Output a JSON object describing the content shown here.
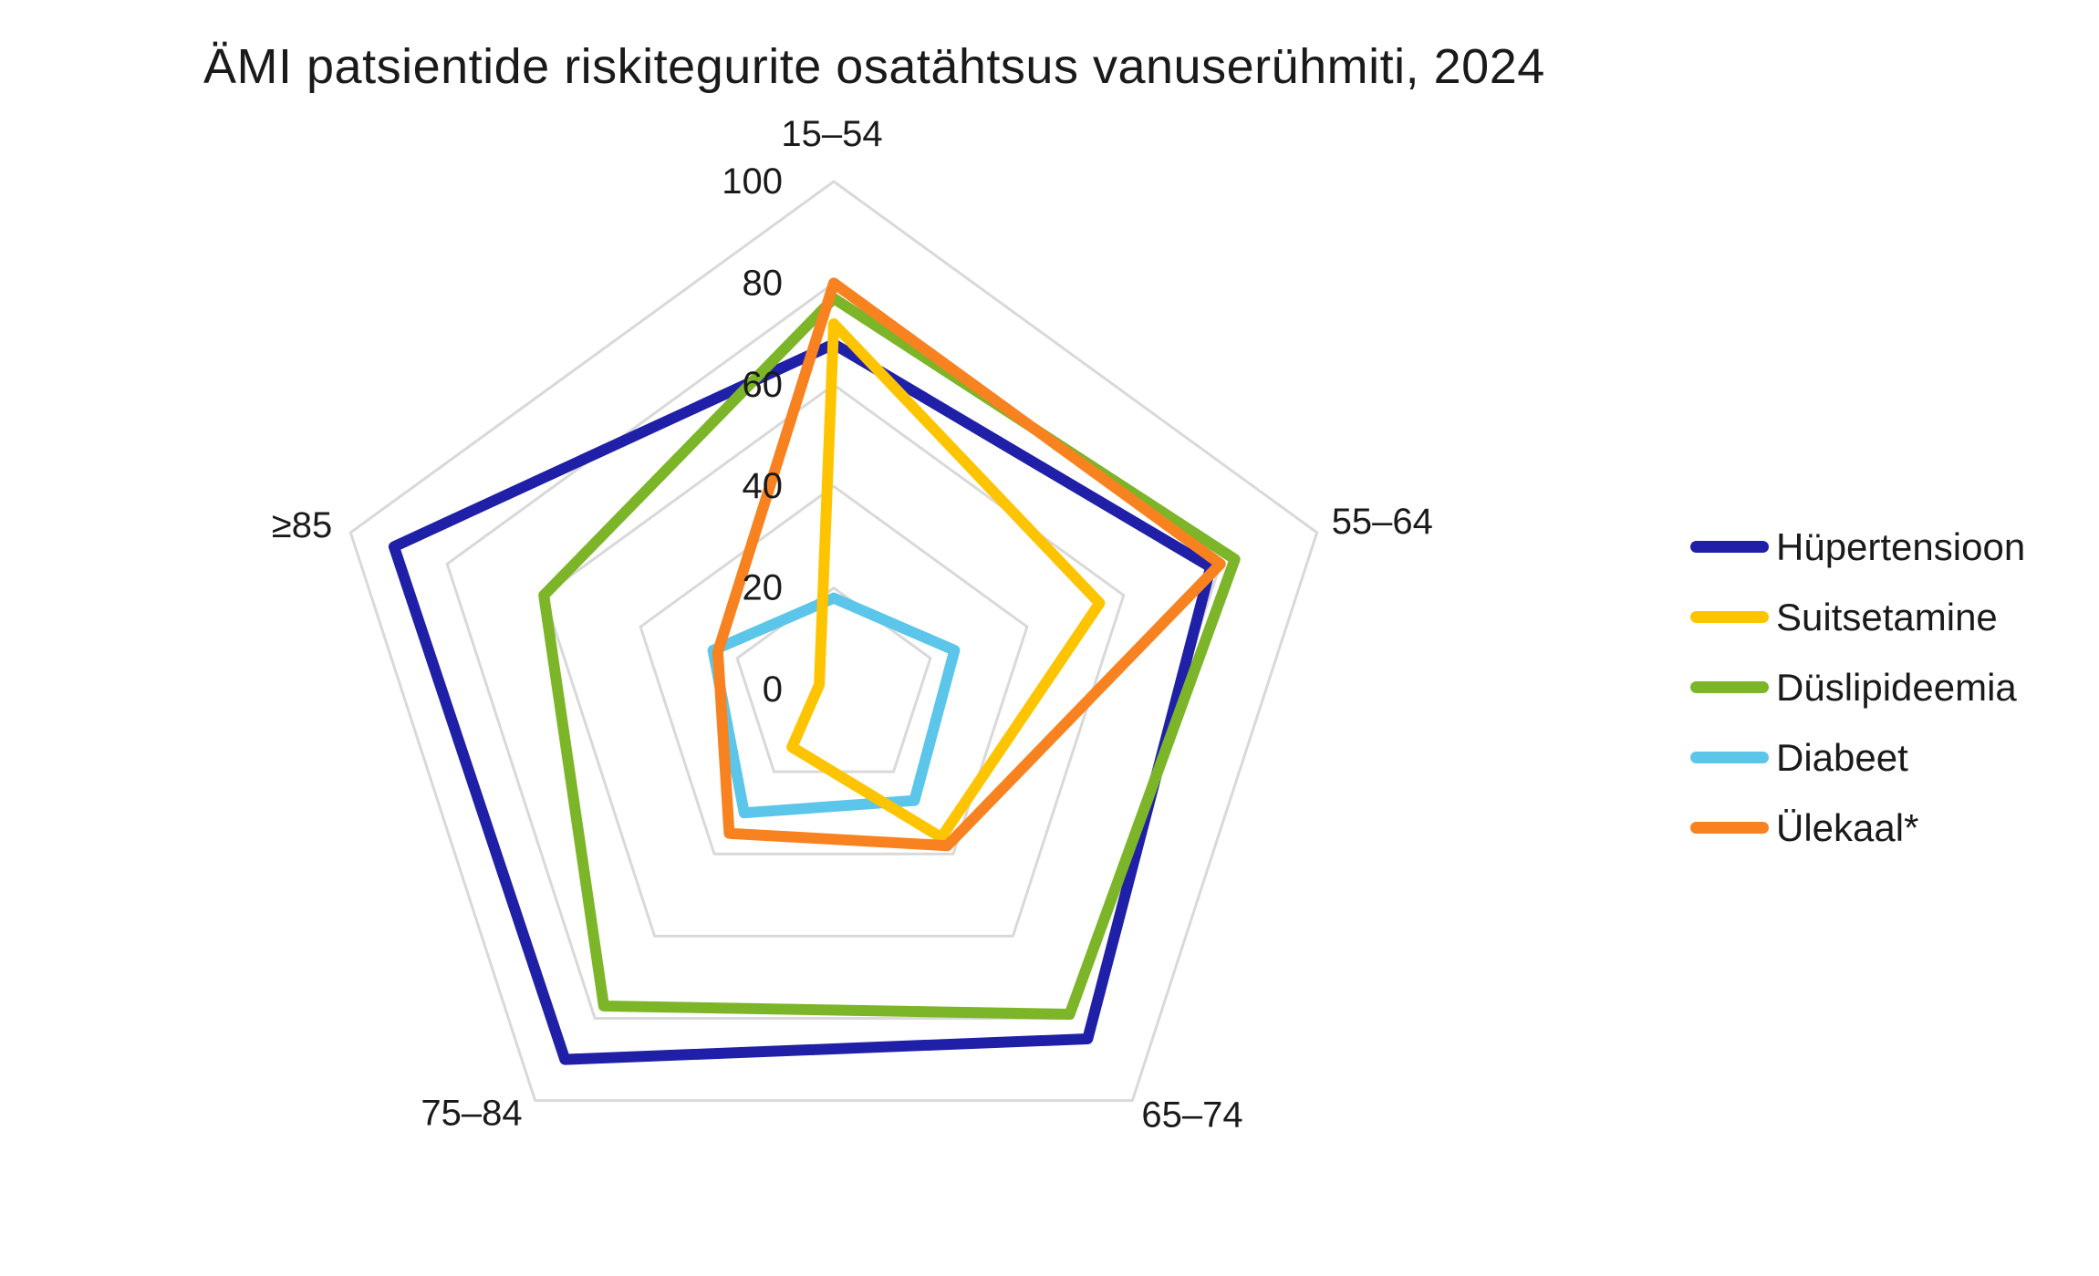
{
  "chart_data": {
    "type": "radar",
    "title": "ÄMI patsientide riskitegurite osatähtsus vanuserühmiti, 2024",
    "categories": [
      "15–54",
      "55–64",
      "65–74",
      "75–84",
      "≥85"
    ],
    "series": [
      {
        "name": "Hüpertensioon",
        "color": "#1F1FA8",
        "values": [
          68,
          78,
          85,
          90,
          91
        ]
      },
      {
        "name": "Suitsetamine",
        "color": "#FFC400",
        "values": [
          72,
          55,
          36,
          14,
          3
        ]
      },
      {
        "name": "Düslipideemia",
        "color": "#7CB528",
        "values": [
          77,
          83,
          79,
          77,
          60
        ]
      },
      {
        "name": "Diabeet",
        "color": "#5BC6E9",
        "values": [
          18,
          25,
          27,
          30,
          25
        ]
      },
      {
        "name": "Ülekaal*",
        "color": "#F8821F",
        "values": [
          80,
          80,
          38,
          35,
          24
        ]
      }
    ],
    "draw_order": [
      "Hüpertensioon",
      "Diabeet",
      "Suitsetamine",
      "Düslipideemia",
      "Ülekaal*"
    ],
    "radial_axis": {
      "min": 0,
      "max": 100,
      "ticks": [
        0,
        20,
        40,
        60,
        80,
        100
      ]
    },
    "grid": true,
    "grid_color": "#D9D9D9",
    "legend_position": "right",
    "legend_entries": [
      "Hüpertensioon",
      "Suitsetamine",
      "Düslipideemia",
      "Diabeet",
      "Ülekaal*"
    ]
  }
}
